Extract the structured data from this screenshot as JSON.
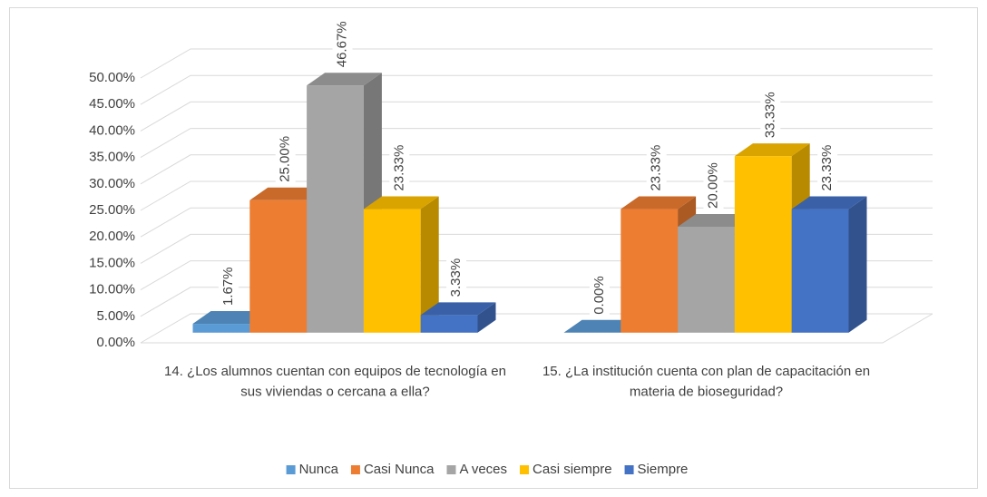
{
  "chart_data": {
    "type": "bar3d",
    "categories": [
      "14. ¿Los alumnos cuentan con equipos de tecnología en sus viviendas o cercana a ella?",
      "15. ¿La institución cuenta con plan de capacitación en materia de bioseguridad?"
    ],
    "series": [
      {
        "name": "Nunca",
        "color": "#5b9bd5",
        "values": [
          1.67,
          0
        ],
        "value_labels": [
          "1.67%",
          "0.00%"
        ]
      },
      {
        "name": "Casi Nunca",
        "color": "#ed7d31",
        "values": [
          25,
          23.33
        ],
        "value_labels": [
          "25.00%",
          "23.33%"
        ]
      },
      {
        "name": "A veces",
        "color": "#a5a5a5",
        "values": [
          46.67,
          20
        ],
        "value_labels": [
          "46.67%",
          "20.00%"
        ]
      },
      {
        "name": "Casi siempre",
        "color": "#ffc000",
        "values": [
          23.33,
          33.33
        ],
        "value_labels": [
          "23.33%",
          "33.33%"
        ]
      },
      {
        "name": "Siempre",
        "color": "#4472c4",
        "values": [
          3.33,
          23.33
        ],
        "value_labels": [
          "3.33%",
          "23.33%"
        ]
      }
    ],
    "ylim": [
      0,
      50
    ],
    "yticks": [
      {
        "value": 0,
        "label": "0.00%"
      },
      {
        "value": 5,
        "label": "5.00%"
      },
      {
        "value": 10,
        "label": "10.00%"
      },
      {
        "value": 15,
        "label": "15.00%"
      },
      {
        "value": 20,
        "label": "20.00%"
      },
      {
        "value": 25,
        "label": "25.00%"
      },
      {
        "value": 30,
        "label": "30.00%"
      },
      {
        "value": 35,
        "label": "35.00%"
      },
      {
        "value": 40,
        "label": "40.00%"
      },
      {
        "value": 45,
        "label": "45.00%"
      },
      {
        "value": 50,
        "label": "50.00%"
      }
    ],
    "grid": true,
    "legend": "bottom"
  }
}
